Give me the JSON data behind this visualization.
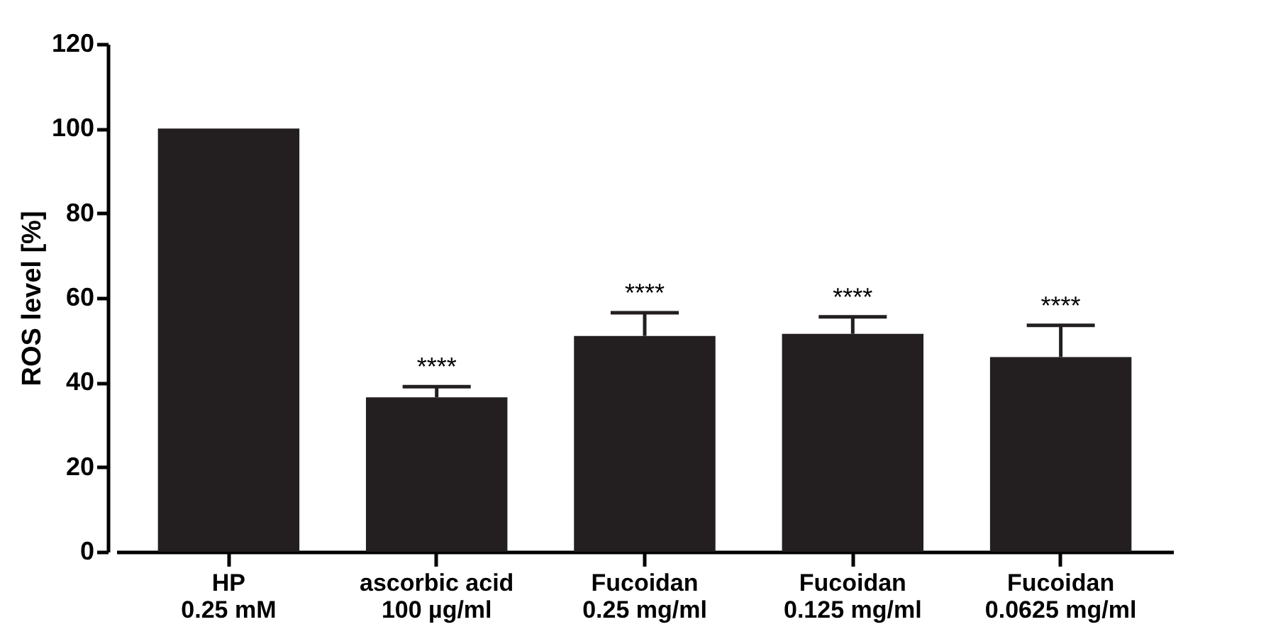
{
  "chart_data": {
    "type": "bar",
    "ylabel": "ROS level [%]",
    "categories": [
      "HP\n0.25 mM",
      "ascorbic acid\n100 µg/ml",
      "Fucoidan\n0.25 mg/ml",
      "Fucoidan\n0.125 mg/ml",
      "Fucoidan\n0.0625 mg/ml"
    ],
    "values": [
      100,
      36.5,
      51,
      51.5,
      46
    ],
    "errors": [
      null,
      [
        36.5,
        39
      ],
      [
        51,
        56.5
      ],
      [
        51.5,
        55.5
      ],
      [
        46,
        53.5
      ]
    ],
    "color": "#231f20",
    "ylim": [
      0,
      120
    ],
    "yticks": [
      0,
      20,
      40,
      60,
      80,
      100,
      120
    ],
    "grid": false,
    "annotations": [
      {
        "text": "****",
        "x": "ascorbic acid\n100 µg/ml",
        "y": 39
      },
      {
        "text": "****",
        "x": "Fucoidan\n0.25 mg/ml",
        "y": 56.5
      },
      {
        "text": "****",
        "x": "Fucoidan\n0.125 mg/ml",
        "y": 55.5
      },
      {
        "text": "****",
        "x": "Fucoidan\n0.0625 mg/ml",
        "y": 53.5
      }
    ]
  }
}
